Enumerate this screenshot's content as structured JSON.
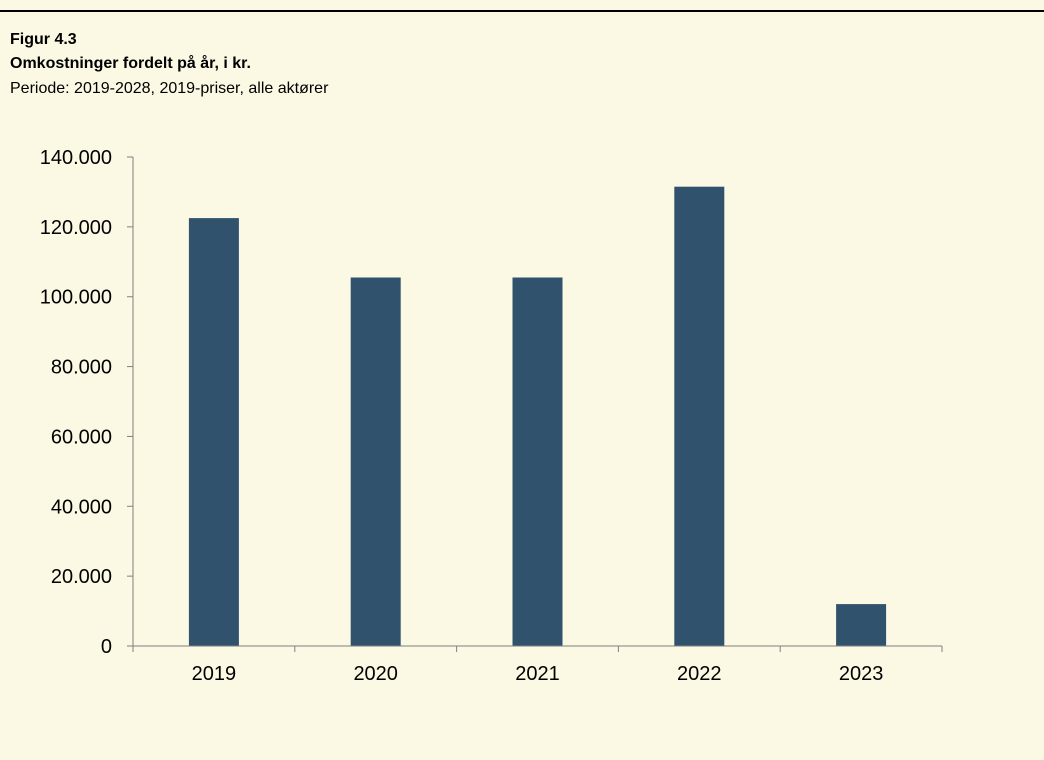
{
  "figure": {
    "label": "Figur 4.3",
    "title": "Omkostninger fordelt på år, i kr.",
    "subtitle": "Periode: 2019-2028, 2019-priser, alle aktører"
  },
  "chart_data": {
    "type": "bar",
    "categories": [
      "2019",
      "2020",
      "2021",
      "2022",
      "2023"
    ],
    "values": [
      122500,
      105500,
      105500,
      131500,
      12000
    ],
    "ylim": [
      0,
      140000
    ],
    "yticks": [
      0,
      20000,
      40000,
      60000,
      80000,
      100000,
      120000,
      140000
    ],
    "ytick_labels": [
      "0",
      "20.000",
      "40.000",
      "60.000",
      "80.000",
      "100.000",
      "120.000",
      "140.000"
    ],
    "grid": false,
    "legend": "none",
    "colors": {
      "bar": "#30526d",
      "background": "#fbf8e3",
      "axis": "#808080"
    }
  }
}
